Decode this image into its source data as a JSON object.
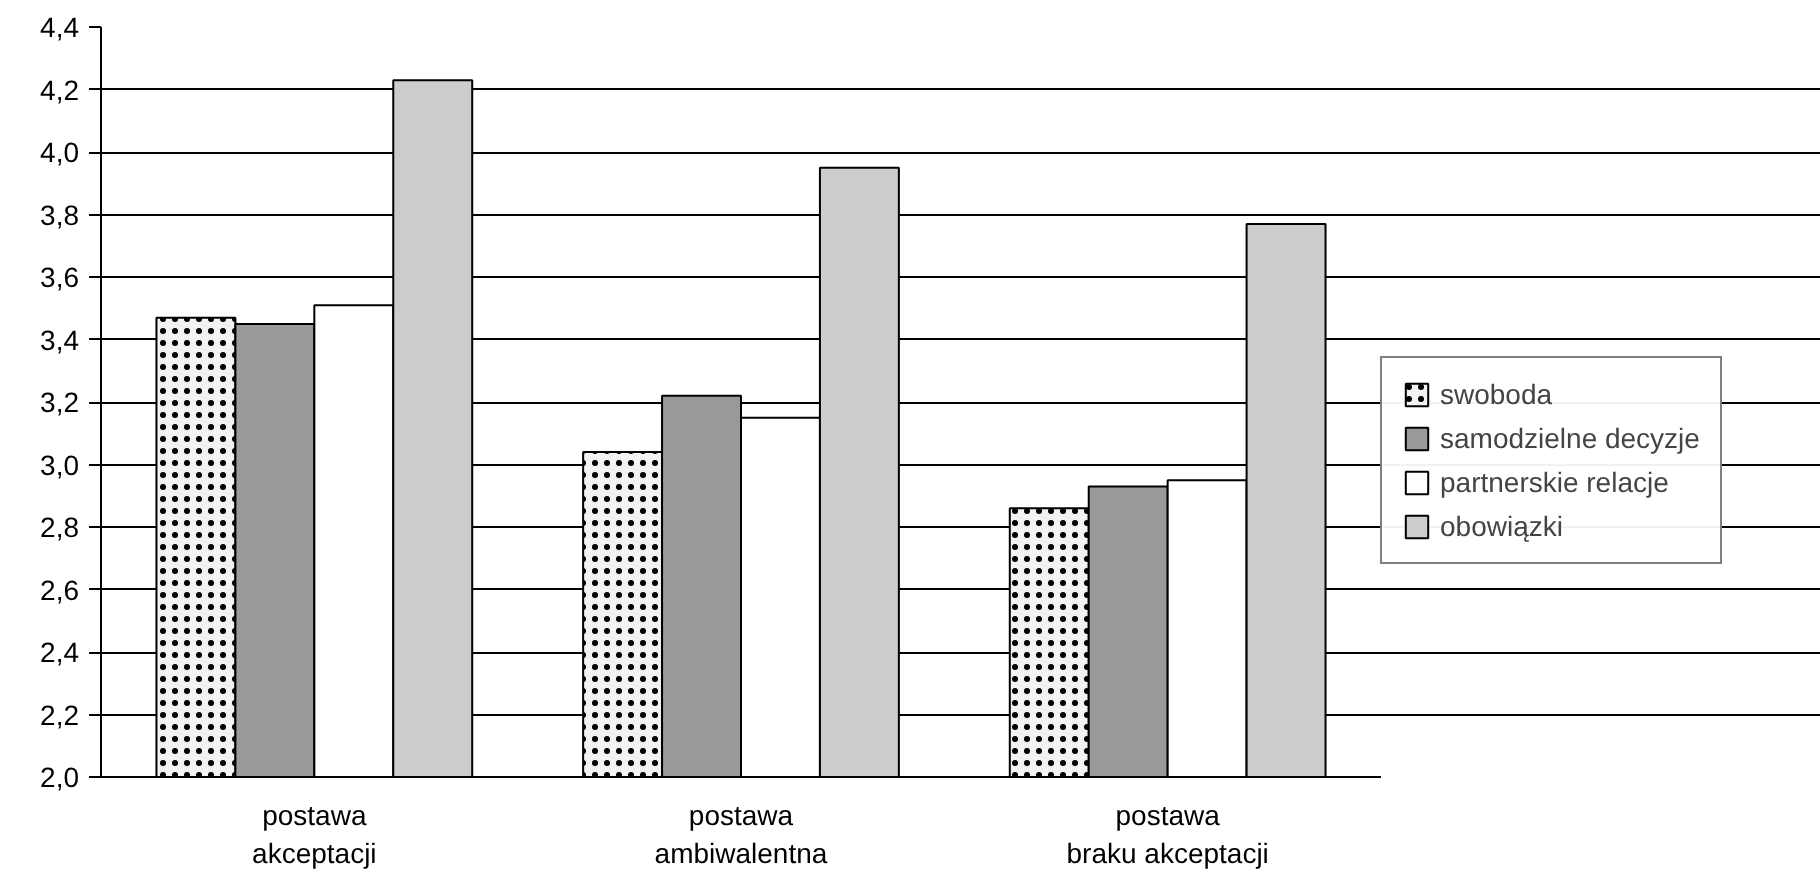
{
  "chart_data": {
    "type": "bar",
    "categories": [
      "postawa akceptacji",
      "postawa ambiwalentna",
      "postawa braku akceptacji"
    ],
    "series": [
      {
        "name": "swoboda",
        "color": "#f2f2f2",
        "values": [
          3.47,
          3.04,
          2.86
        ]
      },
      {
        "name": "samodzielne decyzje",
        "color": "#999999",
        "values": [
          3.45,
          3.22,
          2.93
        ]
      },
      {
        "name": "partnerskie relacje",
        "color": "#ffffff",
        "values": [
          3.51,
          3.15,
          2.95
        ]
      },
      {
        "name": "obowiązki",
        "color": "#cccccc",
        "values": [
          4.23,
          3.95,
          3.77
        ]
      }
    ],
    "ylim": [
      2.0,
      4.4
    ],
    "yticks": [
      {
        "value": 2.0,
        "label": "2,0"
      },
      {
        "value": 2.2,
        "label": "2,2"
      },
      {
        "value": 2.4,
        "label": "2,4"
      },
      {
        "value": 2.6,
        "label": "2,6"
      },
      {
        "value": 2.8,
        "label": "2,8"
      },
      {
        "value": 3.0,
        "label": "3,0"
      },
      {
        "value": 3.2,
        "label": "3,2"
      },
      {
        "value": 3.4,
        "label": "3,4"
      },
      {
        "value": 3.6,
        "label": "3,6"
      },
      {
        "value": 3.8,
        "label": "3,8"
      },
      {
        "value": 4.0,
        "label": "4,0"
      },
      {
        "value": 4.2,
        "label": "4,2"
      },
      {
        "value": 4.4,
        "label": "4,4"
      }
    ],
    "grid": "y",
    "legend": "right"
  }
}
